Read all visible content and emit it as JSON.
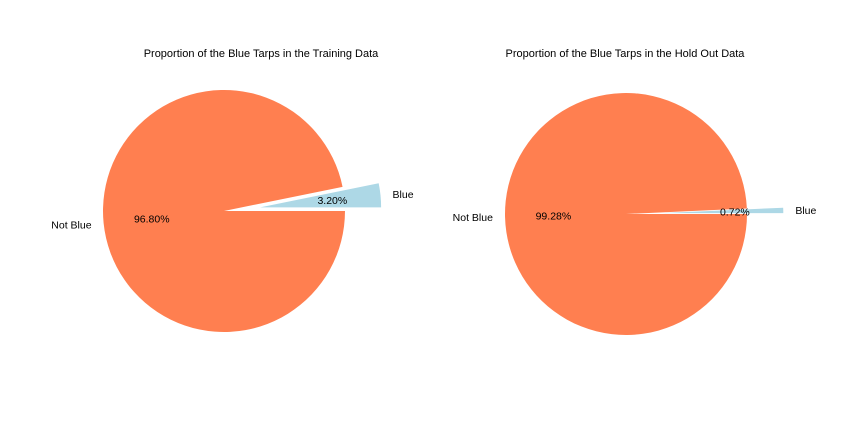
{
  "chart_data": [
    {
      "type": "pie",
      "title": "Proportion of the Blue Tarps in the Training Data",
      "labels": [
        "Blue",
        "Not Blue"
      ],
      "values": [
        3.2,
        96.8
      ],
      "autopct": [
        "3.20%",
        "96.80%"
      ],
      "colors": [
        "#add8e6",
        "#ff7f50"
      ],
      "explode": [
        0.3,
        0
      ]
    },
    {
      "type": "pie",
      "title": "Proportion of the Blue Tarps in the Hold Out Data",
      "labels": [
        "Blue",
        "Not Blue"
      ],
      "values": [
        0.72,
        99.28
      ],
      "autopct": [
        "0.72%",
        "99.28%"
      ],
      "colors": [
        "#add8e6",
        "#ff7f50"
      ],
      "explode": [
        0.3,
        0
      ]
    }
  ]
}
